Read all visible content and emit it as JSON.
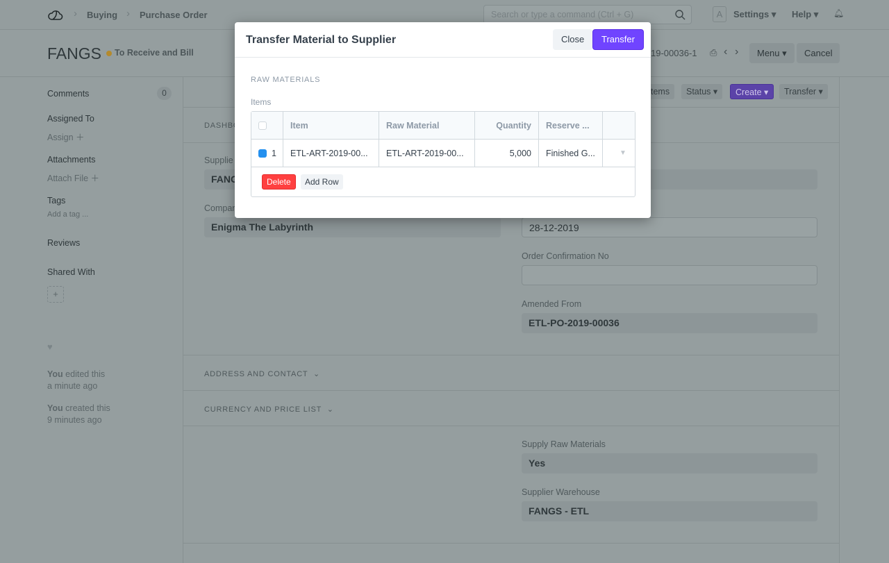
{
  "navbar": {
    "breadcrumbs": [
      "Buying",
      "Purchase Order"
    ],
    "search_placeholder": "Search or type a command (Ctrl + G)",
    "avatar": "A",
    "settings": "Settings",
    "help": "Help"
  },
  "page": {
    "title": "FANGS",
    "status": "To Receive and Bill",
    "status_color": "#b48a2d",
    "doc_name": "19-00036-1",
    "menu": "Menu",
    "cancel": "Cancel"
  },
  "toolbar": {
    "items": "tems",
    "status": "Status",
    "create": "Create",
    "transfer": "Transfer"
  },
  "sidebar": {
    "comments": "Comments",
    "comments_count": "0",
    "assigned_to": "Assigned To",
    "assign": "Assign",
    "attachments": "Attachments",
    "attach_file": "Attach File",
    "tags": "Tags",
    "add_tag": "Add a tag ...",
    "reviews": "Reviews",
    "shared_with": "Shared With",
    "activity": [
      {
        "who": "You",
        "what": " edited this",
        "when": "a minute ago"
      },
      {
        "who": "You",
        "what": " created this",
        "when": "9 minutes ago"
      }
    ]
  },
  "form": {
    "dashboard": "DASHBO",
    "supplier_label": "Supplie",
    "supplier": "FANG",
    "company_label": "Compan",
    "company": "Enigma The Labyrinth",
    "date": "28-12-2019",
    "order_conf_label": "Order Confirmation No",
    "order_conf": "",
    "amended_label": "Amended From",
    "amended": "ETL-PO-2019-00036",
    "address_section": "ADDRESS AND CONTACT",
    "currency_section": "CURRENCY AND PRICE LIST",
    "supply_raw_label": "Supply Raw Materials",
    "supply_raw": "Yes",
    "supplier_wh_label": "Supplier Warehouse",
    "supplier_wh": "FANGS - ETL"
  },
  "modal": {
    "title": "Transfer Material to Supplier",
    "close": "Close",
    "transfer": "Transfer",
    "section": "RAW MATERIALS",
    "items_label": "Items",
    "columns": [
      "Item",
      "Raw Material",
      "Quantity",
      "Reserve ..."
    ],
    "rows": [
      {
        "idx": "1",
        "checked": true,
        "item": "ETL-ART-2019-00...",
        "raw_material": "ETL-ART-2019-00...",
        "quantity": "5,000",
        "reserve": "Finished G..."
      }
    ],
    "delete": "Delete",
    "add_row": "Add Row",
    "accent": "#7044ff"
  }
}
